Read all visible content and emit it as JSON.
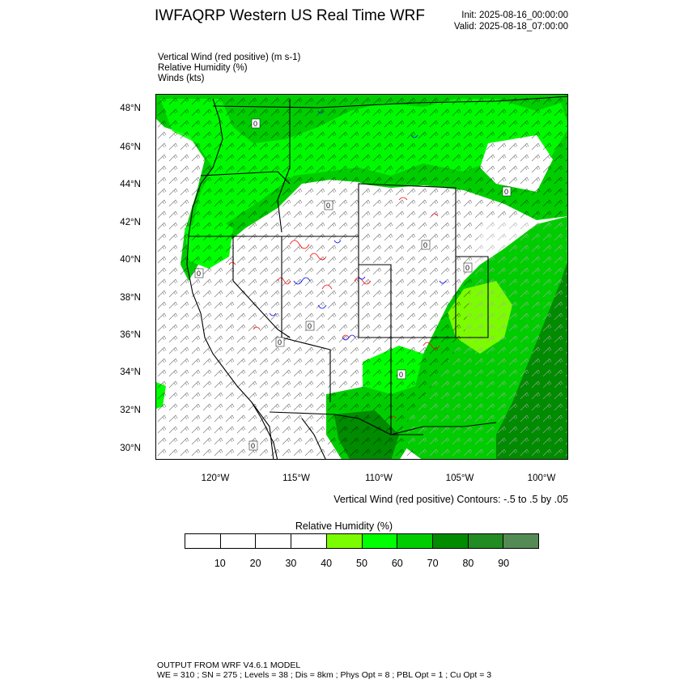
{
  "header": {
    "title": "IWFAQRP Western US Real Time WRF",
    "init": "Init: 2025-08-16_00:00:00",
    "valid": "Valid: 2025-08-18_07:00:00"
  },
  "fields": [
    "Vertical Wind (red positive)   (m s-1)",
    "Relative Humidity   (%)",
    "Winds   (kts)"
  ],
  "map": {
    "lat_labels": [
      "48°N",
      "46°N",
      "44°N",
      "42°N",
      "40°N",
      "38°N",
      "36°N",
      "34°N",
      "32°N",
      "30°N"
    ],
    "lon_labels": [
      "120°W",
      "115°W",
      "110°W",
      "105°W",
      "100°W"
    ],
    "contour_label": "0",
    "colors": {
      "rh_40": "#7cfc00",
      "rh_50": "#00ff00",
      "rh_60": "#00cd00",
      "rh_70": "#008b00",
      "rh_80": "#228b22",
      "rh_90": "#548b54",
      "updraft": "#ff0000",
      "downdraft": "#0000ff",
      "boundary": "#000000"
    }
  },
  "contour_note": "Vertical Wind (red positive) Contours: -.5 to .5 by .05",
  "colorbar": {
    "title": "Relative Humidity   (%)",
    "colors": [
      "#ffffff",
      "#ffffff",
      "#ffffff",
      "#ffffff",
      "#7cfc00",
      "#00ff00",
      "#00cd00",
      "#008b00",
      "#228b22",
      "#548b54"
    ],
    "ticks": [
      "10",
      "20",
      "30",
      "40",
      "50",
      "60",
      "70",
      "80",
      "90"
    ]
  },
  "footer": {
    "line1": "OUTPUT FROM WRF V4.6.1 MODEL",
    "line2": "WE = 310 ; SN = 275 ; Levels = 38 ; Dis = 8km ; Phys Opt = 8 ; PBL Opt = 1 ; Cu Opt = 3"
  }
}
